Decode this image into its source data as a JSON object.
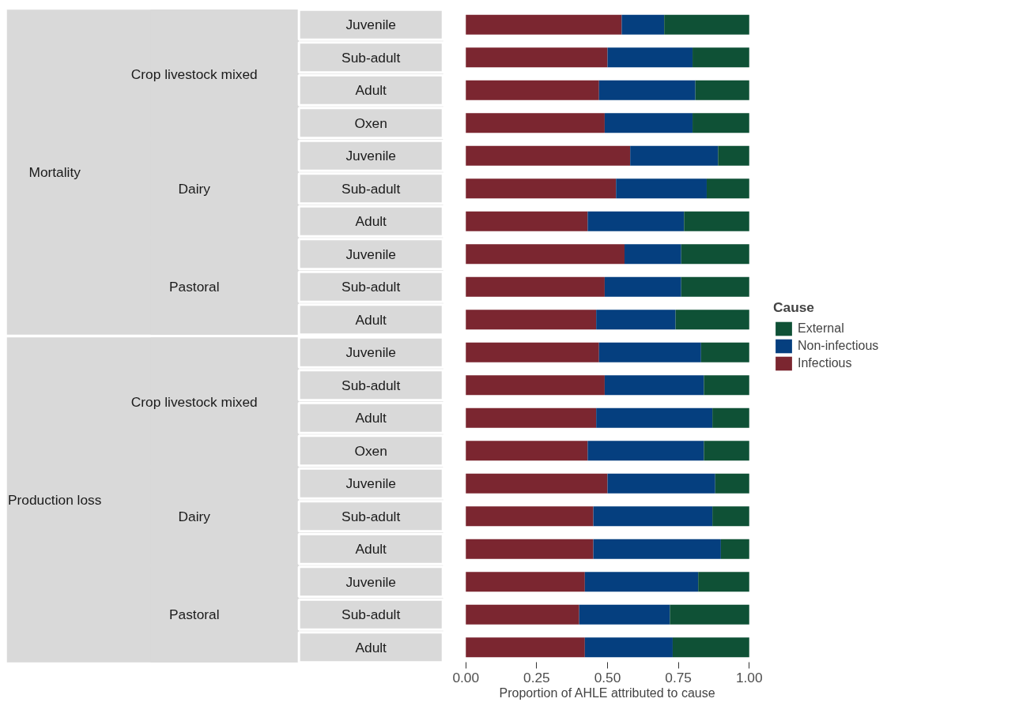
{
  "chart_data": {
    "type": "bar",
    "orientation": "horizontal",
    "stacked": true,
    "xlabel": "Proportion of AHLE attributed to cause",
    "legend_title": "Cause",
    "legend": "right",
    "grid": false,
    "categories": [
      "Juvenile",
      "Sub-adult",
      "Adult",
      "Oxen",
      "Juvenile",
      "Sub-adult",
      "Adult",
      "Juvenile",
      "Sub-adult",
      "Adult",
      "Juvenile",
      "Sub-adult",
      "Adult",
      "Oxen",
      "Juvenile",
      "Sub-adult",
      "Adult",
      "Juvenile",
      "Sub-adult",
      "Adult"
    ],
    "annotations": [
      "Mortality",
      "Crop livestock mixed",
      "Dairy",
      "Pastoral",
      "Production loss",
      "Crop livestock mixed",
      "Dairy",
      "Pastoral"
    ],
    "xlim": [
      0,
      1
    ],
    "xticks": [
      {
        "value": 0,
        "label": "0.00"
      },
      {
        "value": 0.25,
        "label": "0.25"
      },
      {
        "value": 0.5,
        "label": "0.50"
      },
      {
        "value": 0.75,
        "label": "0.75"
      },
      {
        "value": 1,
        "label": "1.00"
      }
    ],
    "series": [
      {
        "name": "Infectious",
        "color": "#7b2630",
        "values": [
          0.55,
          0.5,
          0.47,
          0.49,
          0.58,
          0.53,
          0.43,
          0.56,
          0.49,
          0.46,
          0.47,
          0.49,
          0.46,
          0.43,
          0.5,
          0.45,
          0.45,
          0.42,
          0.4,
          0.42
        ]
      },
      {
        "name": "Non-infectious",
        "color": "#053f7f",
        "values": [
          0.15,
          0.3,
          0.34,
          0.31,
          0.31,
          0.32,
          0.34,
          0.2,
          0.27,
          0.28,
          0.36,
          0.35,
          0.41,
          0.41,
          0.38,
          0.42,
          0.45,
          0.4,
          0.32,
          0.31
        ]
      },
      {
        "name": "External",
        "color": "#0f5136",
        "values": [
          0.3,
          0.2,
          0.19,
          0.2,
          0.11,
          0.15,
          0.23,
          0.24,
          0.24,
          0.26,
          0.17,
          0.16,
          0.13,
          0.16,
          0.12,
          0.13,
          0.1,
          0.18,
          0.28,
          0.27
        ]
      }
    ]
  }
}
